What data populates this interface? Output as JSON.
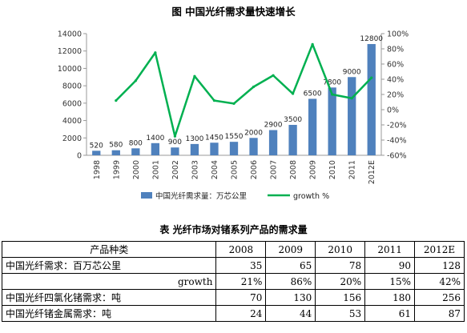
{
  "chart_title": "图  中国光纤需求量快速增长",
  "chart_data": {
    "type": "bar+line",
    "categories": [
      "1998",
      "1999",
      "2000",
      "2001",
      "2002",
      "2003",
      "2004",
      "2005",
      "2006",
      "2007",
      "2008",
      "2009",
      "2010",
      "2011",
      "2012E"
    ],
    "series": [
      {
        "name": "中国光纤需求量：万芯公里",
        "type": "bar",
        "axis": "left",
        "values": [
          520,
          580,
          800,
          1400,
          900,
          1300,
          1450,
          1550,
          2000,
          2900,
          3500,
          6500,
          7800,
          9000,
          12800
        ],
        "color": "#4f81bd"
      },
      {
        "name": "growth %",
        "type": "line",
        "axis": "right",
        "values": [
          null,
          12,
          38,
          75,
          -35,
          44,
          12,
          8,
          30,
          45,
          21,
          86,
          20,
          15,
          42
        ],
        "color": "#00b050"
      }
    ],
    "left_axis": {
      "min": 0,
      "max": 14000,
      "step": 2000,
      "ticks": [
        "0",
        "2000",
        "4000",
        "6000",
        "8000",
        "10000",
        "12000",
        "14000"
      ]
    },
    "right_axis": {
      "min": -60,
      "max": 100,
      "step": 20,
      "ticks": [
        "-60%",
        "-40%",
        "-20%",
        "0%",
        "20%",
        "40%",
        "60%",
        "80%",
        "100%"
      ]
    },
    "bar_labels": [
      "520",
      "580",
      "800",
      "1400",
      "900",
      "1300",
      "1450",
      "1550",
      "2000",
      "2900",
      "3500",
      "6500",
      "7800",
      "9000",
      "12800"
    ],
    "legend": {
      "bar": "中国光纤需求量：万芯公里",
      "line": "growth %"
    },
    "grid": false
  },
  "table_title": "表  光纤市场对锗系列产品的需求量",
  "table": {
    "headers": [
      "产品种类",
      "2008",
      "2009",
      "2010",
      "2011",
      "2012E"
    ],
    "rows": [
      {
        "name": "中国光纤需求：百万芯公里",
        "indent": false,
        "values": [
          "35",
          "65",
          "78",
          "90",
          "128"
        ]
      },
      {
        "name": "growth",
        "indent": true,
        "values": [
          "21%",
          "86%",
          "20%",
          "15%",
          "42%"
        ]
      },
      {
        "name": "中国光纤四氯化锗需求：吨",
        "indent": false,
        "values": [
          "70",
          "130",
          "156",
          "180",
          "256"
        ]
      },
      {
        "name": "中国光纤锗金属需求：吨",
        "indent": false,
        "values": [
          "24",
          "44",
          "53",
          "61",
          "87"
        ]
      }
    ]
  }
}
